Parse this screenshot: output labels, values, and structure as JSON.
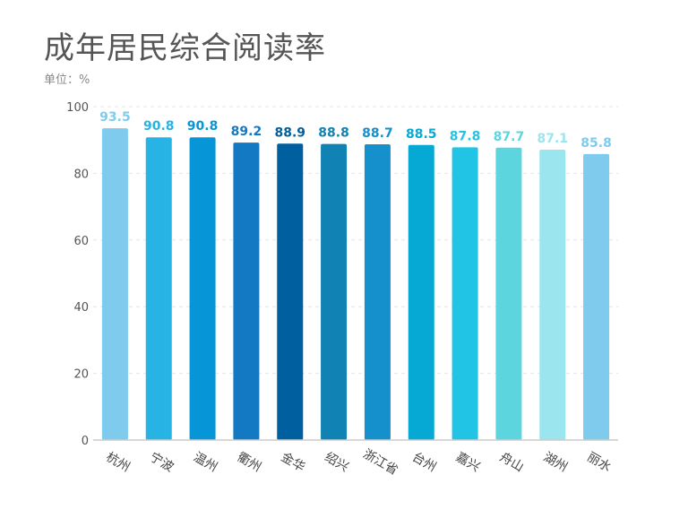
{
  "title": "成年居民综合阅读率",
  "unit_label": "单位：%",
  "chart_data": {
    "type": "bar",
    "categories": [
      "杭州",
      "宁波",
      "温州",
      "衢州",
      "金华",
      "绍兴",
      "浙江省",
      "台州",
      "嘉兴",
      "舟山",
      "湖州",
      "丽水"
    ],
    "values": [
      93.5,
      90.8,
      90.8,
      89.2,
      88.9,
      88.8,
      88.7,
      88.5,
      87.8,
      87.7,
      87.1,
      85.8
    ],
    "value_labels": [
      "93.5",
      "90.8",
      "90.8",
      "89.2",
      "88.9",
      "88.8",
      "88.7",
      "88.5",
      "87.8",
      "87.7",
      "87.1",
      "85.8"
    ],
    "colors": [
      "#7ecbee",
      "#27b3e3",
      "#0695d6",
      "#1279c2",
      "#005f9f",
      "#1082b3",
      "#1590cc",
      "#05a9d3",
      "#22c4e6",
      "#5cd5de",
      "#9be5ef",
      "#7ecbee"
    ],
    "yticks": [
      "0",
      "20",
      "40",
      "60",
      "80",
      "100"
    ],
    "ylim": [
      0,
      100
    ],
    "grid": true,
    "xlabel": "",
    "ylabel": ""
  }
}
